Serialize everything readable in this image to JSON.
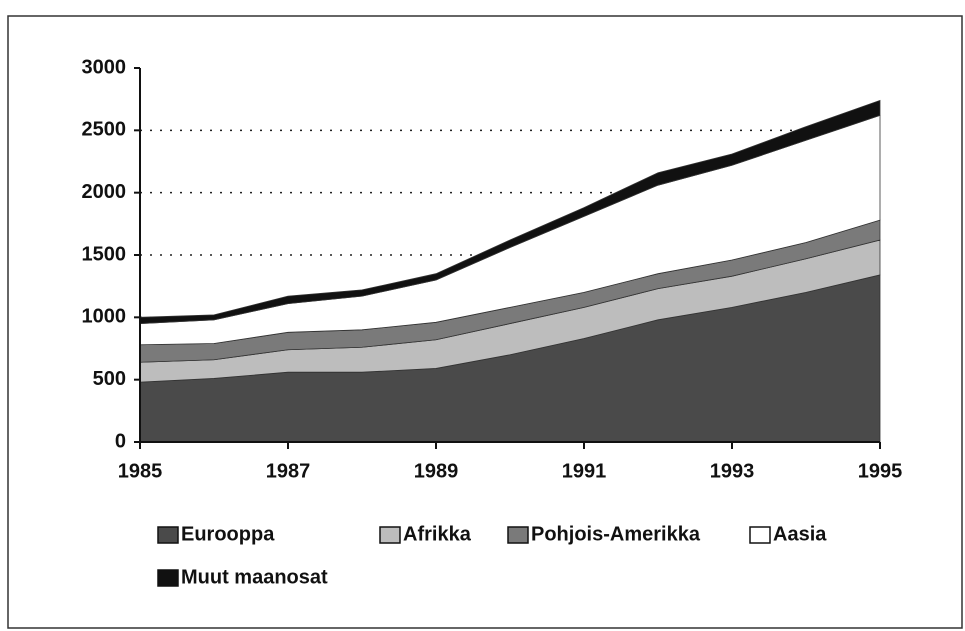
{
  "chart_data": {
    "type": "stacked_area",
    "x": [
      1985,
      1986,
      1987,
      1988,
      1989,
      1990,
      1991,
      1992,
      1993,
      1994,
      1995
    ],
    "series": [
      {
        "name": "Eurooppa",
        "color": "#4a4a4a",
        "values": [
          480,
          510,
          560,
          560,
          590,
          700,
          830,
          980,
          1080,
          1200,
          1340
        ]
      },
      {
        "name": "Afrikka",
        "color": "#bdbdbd",
        "values": [
          160,
          150,
          180,
          200,
          230,
          250,
          250,
          250,
          250,
          270,
          280
        ]
      },
      {
        "name": "Pohjois-Amerikka",
        "color": "#7a7a7a",
        "values": [
          140,
          130,
          140,
          140,
          140,
          130,
          120,
          120,
          130,
          130,
          160
        ]
      },
      {
        "name": "Aasia",
        "color": "#ffffff",
        "values": [
          170,
          190,
          230,
          270,
          340,
          480,
          610,
          710,
          760,
          820,
          840
        ]
      },
      {
        "name": "Muut maanosat",
        "color": "#111111",
        "values": [
          50,
          40,
          60,
          50,
          50,
          60,
          70,
          100,
          90,
          110,
          120
        ]
      }
    ],
    "xlim": [
      1985,
      1995
    ],
    "xticks": [
      1985,
      1987,
      1989,
      1991,
      1993,
      1995
    ],
    "ylim": [
      0,
      3000
    ],
    "yticks": [
      0,
      500,
      1000,
      1500,
      2000,
      2500,
      3000
    ],
    "grid": true
  }
}
